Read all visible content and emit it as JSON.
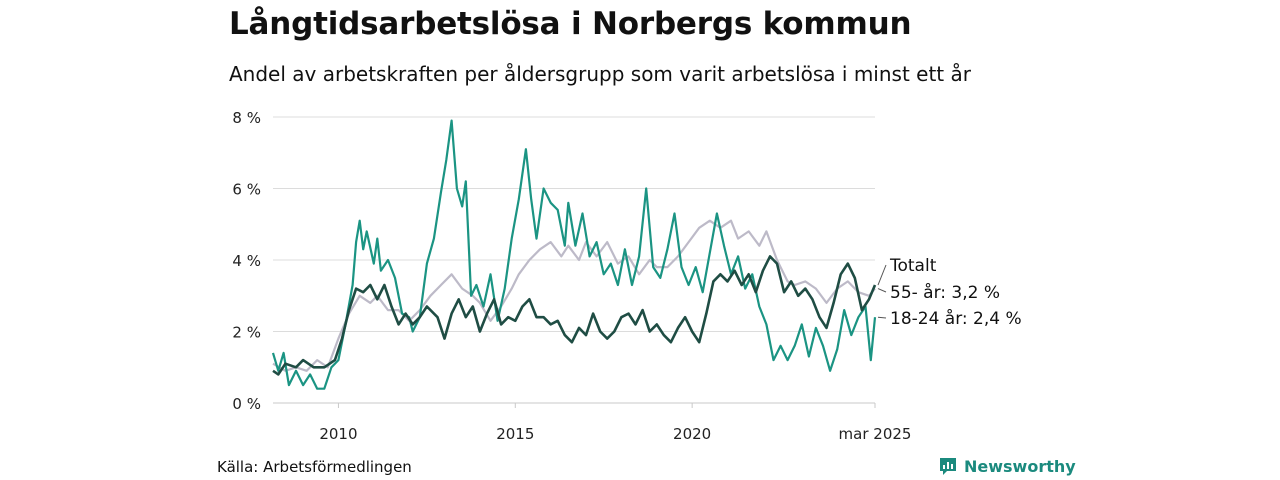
{
  "chart_data": {
    "type": "line",
    "title": "Långtidsarbetslösa i Norbergs kommun",
    "subtitle": "Andel av arbetskraften per åldersgrupp som varit arbetslösa i minst ett år",
    "source": "Källa: Arbetsförmedlingen",
    "logo": "Newsworthy",
    "x_ticks": [
      {
        "label": "2010",
        "year": 2010
      },
      {
        "label": "2015",
        "year": 2015
      },
      {
        "label": "2020",
        "year": 2020
      },
      {
        "label": "mar 2025",
        "year": 2025.17
      }
    ],
    "y_ticks": [
      {
        "label": "0 %",
        "value": 0
      },
      {
        "label": "2 %",
        "value": 2
      },
      {
        "label": "4 %",
        "value": 4
      },
      {
        "label": "6 %",
        "value": 6
      },
      {
        "label": "8 %",
        "value": 8
      }
    ],
    "xlim": [
      2008.15,
      2025.17
    ],
    "ylim": [
      0,
      8
    ],
    "grid": true,
    "legend": "direct labels at right end of lines",
    "series": [
      {
        "name": "Totalt",
        "end_label": "Totalt",
        "color": "#1f4d44",
        "points": [
          [
            2008.15,
            0.9
          ],
          [
            2008.3,
            0.8
          ],
          [
            2008.5,
            1.1
          ],
          [
            2008.8,
            1.0
          ],
          [
            2009.0,
            1.2
          ],
          [
            2009.3,
            1.0
          ],
          [
            2009.6,
            1.0
          ],
          [
            2009.9,
            1.2
          ],
          [
            2010.1,
            1.8
          ],
          [
            2010.3,
            2.6
          ],
          [
            2010.5,
            3.2
          ],
          [
            2010.7,
            3.1
          ],
          [
            2010.9,
            3.3
          ],
          [
            2011.1,
            2.9
          ],
          [
            2011.3,
            3.3
          ],
          [
            2011.5,
            2.7
          ],
          [
            2011.7,
            2.2
          ],
          [
            2011.9,
            2.5
          ],
          [
            2012.1,
            2.2
          ],
          [
            2012.3,
            2.4
          ],
          [
            2012.5,
            2.7
          ],
          [
            2012.8,
            2.4
          ],
          [
            2013.0,
            1.8
          ],
          [
            2013.2,
            2.5
          ],
          [
            2013.4,
            2.9
          ],
          [
            2013.6,
            2.4
          ],
          [
            2013.8,
            2.7
          ],
          [
            2014.0,
            2.0
          ],
          [
            2014.2,
            2.5
          ],
          [
            2014.4,
            2.9
          ],
          [
            2014.6,
            2.2
          ],
          [
            2014.8,
            2.4
          ],
          [
            2015.0,
            2.3
          ],
          [
            2015.2,
            2.7
          ],
          [
            2015.4,
            2.9
          ],
          [
            2015.6,
            2.4
          ],
          [
            2015.8,
            2.4
          ],
          [
            2016.0,
            2.2
          ],
          [
            2016.2,
            2.3
          ],
          [
            2016.4,
            1.9
          ],
          [
            2016.6,
            1.7
          ],
          [
            2016.8,
            2.1
          ],
          [
            2017.0,
            1.9
          ],
          [
            2017.2,
            2.5
          ],
          [
            2017.4,
            2.0
          ],
          [
            2017.6,
            1.8
          ],
          [
            2017.8,
            2.0
          ],
          [
            2018.0,
            2.4
          ],
          [
            2018.2,
            2.5
          ],
          [
            2018.4,
            2.2
          ],
          [
            2018.6,
            2.6
          ],
          [
            2018.8,
            2.0
          ],
          [
            2019.0,
            2.2
          ],
          [
            2019.2,
            1.9
          ],
          [
            2019.4,
            1.7
          ],
          [
            2019.6,
            2.1
          ],
          [
            2019.8,
            2.4
          ],
          [
            2020.0,
            2.0
          ],
          [
            2020.2,
            1.7
          ],
          [
            2020.4,
            2.5
          ],
          [
            2020.6,
            3.4
          ],
          [
            2020.8,
            3.6
          ],
          [
            2021.0,
            3.4
          ],
          [
            2021.2,
            3.7
          ],
          [
            2021.4,
            3.3
          ],
          [
            2021.6,
            3.6
          ],
          [
            2021.8,
            3.1
          ],
          [
            2022.0,
            3.7
          ],
          [
            2022.2,
            4.1
          ],
          [
            2022.4,
            3.9
          ],
          [
            2022.6,
            3.1
          ],
          [
            2022.8,
            3.4
          ],
          [
            2023.0,
            3.0
          ],
          [
            2023.2,
            3.2
          ],
          [
            2023.4,
            2.9
          ],
          [
            2023.6,
            2.4
          ],
          [
            2023.8,
            2.1
          ],
          [
            2024.0,
            2.8
          ],
          [
            2024.2,
            3.6
          ],
          [
            2024.4,
            3.9
          ],
          [
            2024.6,
            3.5
          ],
          [
            2024.8,
            2.6
          ],
          [
            2025.0,
            2.9
          ],
          [
            2025.17,
            3.3
          ]
        ]
      },
      {
        "name": "55- år",
        "end_label": "55- år: 3,2 %",
        "color": "#bdbac8",
        "points": [
          [
            2008.15,
            1.1
          ],
          [
            2008.5,
            0.9
          ],
          [
            2008.8,
            1.0
          ],
          [
            2009.1,
            0.9
          ],
          [
            2009.4,
            1.2
          ],
          [
            2009.7,
            1.0
          ],
          [
            2010.0,
            1.8
          ],
          [
            2010.3,
            2.5
          ],
          [
            2010.6,
            3.0
          ],
          [
            2010.9,
            2.8
          ],
          [
            2011.1,
            3.0
          ],
          [
            2011.4,
            2.6
          ],
          [
            2011.7,
            2.6
          ],
          [
            2012.0,
            2.3
          ],
          [
            2012.3,
            2.6
          ],
          [
            2012.6,
            3.0
          ],
          [
            2012.9,
            3.3
          ],
          [
            2013.2,
            3.6
          ],
          [
            2013.5,
            3.2
          ],
          [
            2013.8,
            3.0
          ],
          [
            2014.0,
            2.8
          ],
          [
            2014.3,
            2.3
          ],
          [
            2014.6,
            2.7
          ],
          [
            2014.9,
            3.2
          ],
          [
            2015.1,
            3.6
          ],
          [
            2015.4,
            4.0
          ],
          [
            2015.7,
            4.3
          ],
          [
            2016.0,
            4.5
          ],
          [
            2016.3,
            4.1
          ],
          [
            2016.5,
            4.4
          ],
          [
            2016.8,
            4.0
          ],
          [
            2017.0,
            4.5
          ],
          [
            2017.3,
            4.1
          ],
          [
            2017.6,
            4.5
          ],
          [
            2017.9,
            3.9
          ],
          [
            2018.2,
            4.1
          ],
          [
            2018.5,
            3.6
          ],
          [
            2018.8,
            4.0
          ],
          [
            2019.0,
            3.8
          ],
          [
            2019.3,
            3.8
          ],
          [
            2019.6,
            4.1
          ],
          [
            2019.9,
            4.5
          ],
          [
            2020.2,
            4.9
          ],
          [
            2020.5,
            5.1
          ],
          [
            2020.8,
            4.9
          ],
          [
            2021.1,
            5.1
          ],
          [
            2021.3,
            4.6
          ],
          [
            2021.6,
            4.8
          ],
          [
            2021.9,
            4.4
          ],
          [
            2022.1,
            4.8
          ],
          [
            2022.4,
            4.0
          ],
          [
            2022.7,
            3.4
          ],
          [
            2022.9,
            3.3
          ],
          [
            2023.2,
            3.4
          ],
          [
            2023.5,
            3.2
          ],
          [
            2023.8,
            2.8
          ],
          [
            2024.1,
            3.2
          ],
          [
            2024.4,
            3.4
          ],
          [
            2024.7,
            3.1
          ],
          [
            2025.0,
            3.0
          ],
          [
            2025.17,
            3.2
          ]
        ]
      },
      {
        "name": "18-24 år",
        "end_label": "18-24 år: 2,4 %",
        "color": "#1b9483",
        "points": [
          [
            2008.15,
            1.4
          ],
          [
            2008.3,
            0.9
          ],
          [
            2008.45,
            1.4
          ],
          [
            2008.6,
            0.5
          ],
          [
            2008.8,
            0.9
          ],
          [
            2009.0,
            0.5
          ],
          [
            2009.2,
            0.8
          ],
          [
            2009.4,
            0.4
          ],
          [
            2009.6,
            0.4
          ],
          [
            2009.8,
            1.0
          ],
          [
            2010.0,
            1.2
          ],
          [
            2010.2,
            2.2
          ],
          [
            2010.4,
            3.3
          ],
          [
            2010.5,
            4.5
          ],
          [
            2010.6,
            5.1
          ],
          [
            2010.7,
            4.3
          ],
          [
            2010.8,
            4.8
          ],
          [
            2011.0,
            3.9
          ],
          [
            2011.1,
            4.6
          ],
          [
            2011.2,
            3.7
          ],
          [
            2011.4,
            4.0
          ],
          [
            2011.6,
            3.5
          ],
          [
            2011.8,
            2.5
          ],
          [
            2012.0,
            2.4
          ],
          [
            2012.1,
            2.0
          ],
          [
            2012.3,
            2.4
          ],
          [
            2012.5,
            3.9
          ],
          [
            2012.7,
            4.6
          ],
          [
            2012.9,
            5.9
          ],
          [
            2013.05,
            6.8
          ],
          [
            2013.2,
            7.9
          ],
          [
            2013.35,
            6.0
          ],
          [
            2013.5,
            5.5
          ],
          [
            2013.6,
            6.2
          ],
          [
            2013.75,
            3.0
          ],
          [
            2013.9,
            3.3
          ],
          [
            2014.1,
            2.7
          ],
          [
            2014.3,
            3.6
          ],
          [
            2014.5,
            2.3
          ],
          [
            2014.7,
            3.2
          ],
          [
            2014.9,
            4.6
          ],
          [
            2015.1,
            5.7
          ],
          [
            2015.3,
            7.1
          ],
          [
            2015.45,
            5.7
          ],
          [
            2015.6,
            4.6
          ],
          [
            2015.8,
            6.0
          ],
          [
            2016.0,
            5.6
          ],
          [
            2016.2,
            5.4
          ],
          [
            2016.4,
            4.4
          ],
          [
            2016.5,
            5.6
          ],
          [
            2016.7,
            4.4
          ],
          [
            2016.9,
            5.3
          ],
          [
            2017.1,
            4.1
          ],
          [
            2017.3,
            4.5
          ],
          [
            2017.5,
            3.6
          ],
          [
            2017.7,
            3.9
          ],
          [
            2017.9,
            3.3
          ],
          [
            2018.1,
            4.3
          ],
          [
            2018.3,
            3.3
          ],
          [
            2018.5,
            4.1
          ],
          [
            2018.7,
            6.0
          ],
          [
            2018.9,
            3.8
          ],
          [
            2019.1,
            3.5
          ],
          [
            2019.3,
            4.3
          ],
          [
            2019.5,
            5.3
          ],
          [
            2019.7,
            3.8
          ],
          [
            2019.9,
            3.3
          ],
          [
            2020.1,
            3.8
          ],
          [
            2020.3,
            3.1
          ],
          [
            2020.5,
            4.2
          ],
          [
            2020.7,
            5.3
          ],
          [
            2020.9,
            4.4
          ],
          [
            2021.1,
            3.6
          ],
          [
            2021.3,
            4.1
          ],
          [
            2021.5,
            3.2
          ],
          [
            2021.7,
            3.6
          ],
          [
            2021.9,
            2.7
          ],
          [
            2022.1,
            2.2
          ],
          [
            2022.3,
            1.2
          ],
          [
            2022.5,
            1.6
          ],
          [
            2022.7,
            1.2
          ],
          [
            2022.9,
            1.6
          ],
          [
            2023.1,
            2.2
          ],
          [
            2023.3,
            1.3
          ],
          [
            2023.5,
            2.1
          ],
          [
            2023.7,
            1.6
          ],
          [
            2023.9,
            0.9
          ],
          [
            2024.1,
            1.5
          ],
          [
            2024.3,
            2.6
          ],
          [
            2024.5,
            1.9
          ],
          [
            2024.7,
            2.4
          ],
          [
            2024.9,
            2.7
          ],
          [
            2025.05,
            1.2
          ],
          [
            2025.17,
            2.4
          ]
        ]
      }
    ]
  }
}
